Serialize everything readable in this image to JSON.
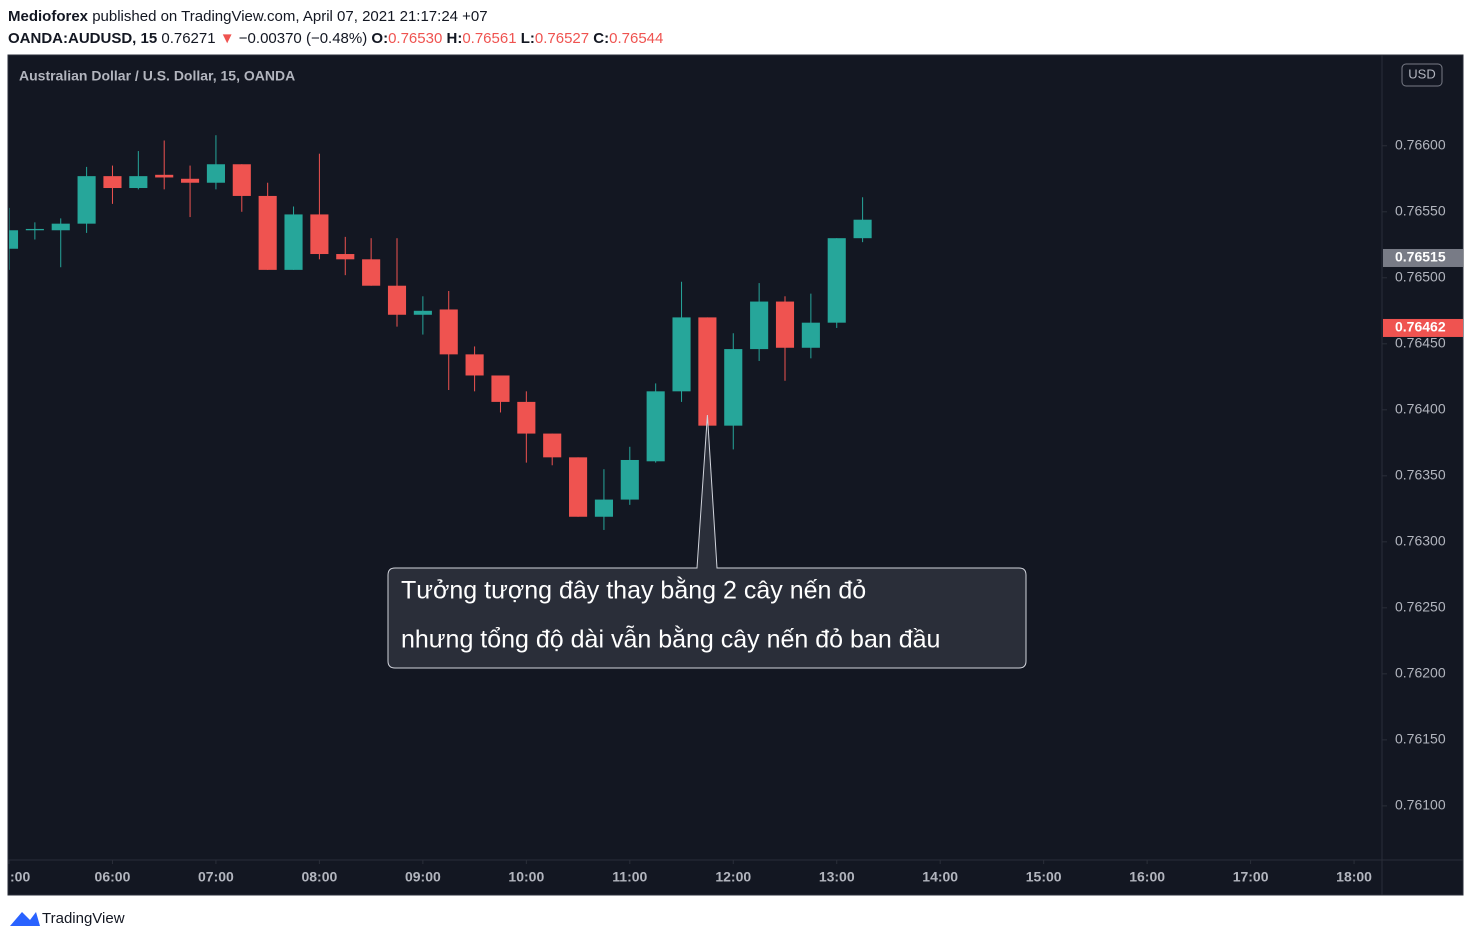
{
  "header": {
    "publisher": "Medioforex",
    "published": "published on TradingView.com, April 07, 2021 21:17:24 +07",
    "symbol": "OANDA:AUDUSD, 15",
    "last": "0.76271",
    "change": "−0.00370 (−0.48%)",
    "ohlc": [
      {
        "label": "O:",
        "value": "0.76530"
      },
      {
        "label": "H:",
        "value": "0.76561"
      },
      {
        "label": "L:",
        "value": "0.76527"
      },
      {
        "label": "C:",
        "value": "0.76544"
      }
    ]
  },
  "chart_data": {
    "type": "candlestick",
    "title": "Australian Dollar / U.S. Dollar, 15, OANDA",
    "currency": "USD",
    "x": [
      5,
      5.25,
      5.5,
      5.75,
      6,
      6.25,
      6.5,
      6.75,
      7,
      7.25,
      7.5,
      7.75,
      8,
      8.25,
      8.5,
      8.75,
      9,
      9.25,
      9.5,
      9.75,
      10,
      10.25,
      10.5,
      10.75,
      11,
      11.25,
      11.5,
      11.75,
      12,
      12.25,
      12.5,
      12.75,
      13,
      13.25
    ],
    "open": [
      0.76522,
      0.76536,
      0.76536,
      0.76541,
      0.76577,
      0.76568,
      0.76578,
      0.76575,
      0.76572,
      0.76586,
      0.76562,
      0.76506,
      0.76548,
      0.76518,
      0.76514,
      0.76494,
      0.76472,
      0.76476,
      0.76442,
      0.76426,
      0.76406,
      0.76382,
      0.76364,
      0.76319,
      0.76332,
      0.76361,
      0.76414,
      0.7647,
      0.76388,
      0.76446,
      0.76482,
      0.76447,
      0.76466,
      0.7653
    ],
    "high": [
      0.76553,
      0.76542,
      0.76545,
      0.76584,
      0.76585,
      0.76596,
      0.76604,
      0.76585,
      0.76608,
      0.76586,
      0.76572,
      0.76554,
      0.76594,
      0.76531,
      0.7653,
      0.7653,
      0.76486,
      0.7649,
      0.76448,
      0.76426,
      0.76414,
      0.76382,
      0.76364,
      0.76355,
      0.76372,
      0.7642,
      0.76497,
      0.7647,
      0.76458,
      0.76496,
      0.76486,
      0.76488,
      0.7653,
      0.76561
    ],
    "low": [
      0.76506,
      0.76529,
      0.76508,
      0.76534,
      0.76556,
      0.76567,
      0.76567,
      0.76546,
      0.76567,
      0.7655,
      0.76506,
      0.76506,
      0.76514,
      0.76502,
      0.76494,
      0.76463,
      0.76457,
      0.76415,
      0.76414,
      0.76398,
      0.7636,
      0.76358,
      0.76319,
      0.76309,
      0.76328,
      0.7636,
      0.76406,
      0.76388,
      0.7637,
      0.76437,
      0.76422,
      0.76439,
      0.76462,
      0.76527
    ],
    "close": [
      0.76536,
      0.76537,
      0.76541,
      0.76577,
      0.76568,
      0.76577,
      0.76576,
      0.76572,
      0.76586,
      0.76562,
      0.76506,
      0.76548,
      0.76518,
      0.76514,
      0.76494,
      0.76472,
      0.76475,
      0.76442,
      0.76426,
      0.76406,
      0.76382,
      0.76364,
      0.76319,
      0.76332,
      0.76362,
      0.76414,
      0.7647,
      0.76388,
      0.76446,
      0.76482,
      0.76447,
      0.76466,
      0.7653,
      0.76544
    ],
    "up_color": "#26a69a",
    "down_color": "#ef5350",
    "xlim": [
      5,
      18.27
    ],
    "xticks": [
      {
        "value": 5,
        "label": ":00"
      },
      {
        "value": 6,
        "label": "06:00"
      },
      {
        "value": 7,
        "label": "07:00"
      },
      {
        "value": 8,
        "label": "08:00"
      },
      {
        "value": 9,
        "label": "09:00"
      },
      {
        "value": 10,
        "label": "10:00"
      },
      {
        "value": 11,
        "label": "11:00"
      },
      {
        "value": 12,
        "label": "12:00"
      },
      {
        "value": 13,
        "label": "13:00"
      },
      {
        "value": 14,
        "label": "14:00"
      },
      {
        "value": 15,
        "label": "15:00"
      },
      {
        "value": 16,
        "label": "16:00"
      },
      {
        "value": 17,
        "label": "17:00"
      },
      {
        "value": 18,
        "label": "18:00"
      }
    ],
    "ylim": [
      0.76059,
      0.76668
    ],
    "yticks": [
      {
        "value": 0.761,
        "label": "0.76100"
      },
      {
        "value": 0.7615,
        "label": "0.76150"
      },
      {
        "value": 0.762,
        "label": "0.76200"
      },
      {
        "value": 0.7625,
        "label": "0.76250"
      },
      {
        "value": 0.763,
        "label": "0.76300"
      },
      {
        "value": 0.7635,
        "label": "0.76350"
      },
      {
        "value": 0.764,
        "label": "0.76400"
      },
      {
        "value": 0.7645,
        "label": "0.76450"
      },
      {
        "value": 0.765,
        "label": "0.76500"
      },
      {
        "value": 0.7655,
        "label": "0.76550"
      },
      {
        "value": 0.766,
        "label": "0.76600"
      }
    ],
    "price_labels": [
      {
        "value": 0.76515,
        "color": "#787b86"
      },
      {
        "value": 0.76462,
        "color": "#ef5350"
      }
    ],
    "grid": false,
    "annotation": {
      "lines": [
        "Tưởng tượng đây thay bằng 2 cây nến đỏ",
        "nhưng tổng độ dài vẫn bằng cây nến đỏ ban đầu"
      ],
      "x": 11.75,
      "y": 0.76396
    }
  },
  "footer": {
    "brand": "TradingView"
  }
}
